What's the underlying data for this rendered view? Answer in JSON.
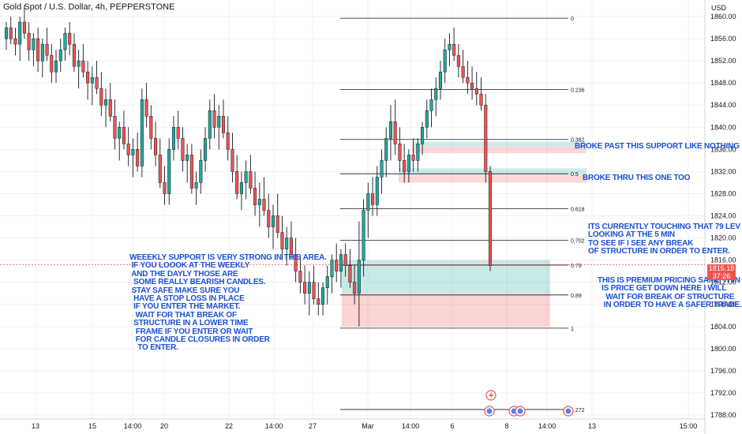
{
  "title": "Gold Spot / U.S. Dollar, 4h, PEPPERSTONE",
  "currency": "USD",
  "price_badge": {
    "price": "1815.18",
    "countdown": "37:26",
    "value": 1815.18
  },
  "chart_data": {
    "type": "candlestick",
    "y_axis": {
      "min": 1786,
      "max": 1862,
      "ticks": [
        1788,
        1792,
        1796,
        1800,
        1804,
        1808,
        1812,
        1816,
        1820,
        1824,
        1828,
        1832,
        1836,
        1840,
        1844,
        1848,
        1852,
        1856,
        1860
      ]
    },
    "x_ticks": [
      "13",
      "15",
      "14:00",
      "20",
      "22",
      "14:00",
      "27",
      "Mar",
      "14:00",
      "6",
      "8",
      "14:00",
      "13",
      "15:00"
    ],
    "fib_levels": [
      {
        "label": "0",
        "price": 1859.7
      },
      {
        "label": "0.236",
        "price": 1846.8
      },
      {
        "label": "0.382",
        "price": 1837.8
      },
      {
        "label": "0.5",
        "price": 1831.6
      },
      {
        "label": "0.618",
        "price": 1825.3
      },
      {
        "label": "0.702",
        "price": 1819.6
      },
      {
        "label": "0.79",
        "price": 1815.1
      },
      {
        "label": "0.89",
        "price": 1809.7
      },
      {
        "label": "1",
        "price": 1803.7
      },
      {
        "label": "1.272",
        "price": 1789.0
      }
    ],
    "zones": [
      {
        "type": "resistance",
        "from": 1835.3,
        "to": 1836.6
      },
      {
        "type": "support",
        "from": 1836.6,
        "to": 1837.4
      },
      {
        "type": "resistance",
        "from": 1830.0,
        "to": 1831.4
      },
      {
        "type": "support",
        "from": 1831.4,
        "to": 1832.6
      },
      {
        "type": "target",
        "from": 1814.2,
        "to": 1816.0
      },
      {
        "type": "target",
        "from": 1810.0,
        "to": 1814.2
      },
      {
        "type": "stop",
        "from": 1804.0,
        "to": 1810.0
      }
    ],
    "candles": [
      [
        1856,
        1859,
        1854,
        1858
      ],
      [
        1858,
        1860,
        1855,
        1856
      ],
      [
        1856,
        1858,
        1853,
        1855
      ],
      [
        1855,
        1860,
        1852,
        1859
      ],
      [
        1859,
        1862,
        1856,
        1857
      ],
      [
        1857,
        1859,
        1852,
        1854
      ],
      [
        1854,
        1857,
        1851,
        1856
      ],
      [
        1856,
        1858,
        1850,
        1852
      ],
      [
        1852,
        1856,
        1849,
        1855
      ],
      [
        1855,
        1858,
        1852,
        1853
      ],
      [
        1853,
        1855,
        1848,
        1850
      ],
      [
        1850,
        1854,
        1848,
        1852
      ],
      [
        1852,
        1856,
        1850,
        1854
      ],
      [
        1854,
        1858,
        1852,
        1857
      ],
      [
        1857,
        1859,
        1853,
        1855
      ],
      [
        1855,
        1857,
        1850,
        1851
      ],
      [
        1851,
        1854,
        1847,
        1852
      ],
      [
        1852,
        1855,
        1849,
        1850
      ],
      [
        1850,
        1852,
        1845,
        1848
      ],
      [
        1848,
        1851,
        1844,
        1849
      ],
      [
        1849,
        1852,
        1846,
        1847
      ],
      [
        1847,
        1850,
        1842,
        1844
      ],
      [
        1844,
        1847,
        1840,
        1845
      ],
      [
        1845,
        1848,
        1841,
        1842
      ],
      [
        1842,
        1845,
        1836,
        1838
      ],
      [
        1838,
        1841,
        1834,
        1840
      ],
      [
        1840,
        1843,
        1836,
        1837
      ],
      [
        1837,
        1840,
        1833,
        1835
      ],
      [
        1835,
        1838,
        1831,
        1836
      ],
      [
        1836,
        1839,
        1832,
        1833
      ],
      [
        1833,
        1847,
        1831,
        1845
      ],
      [
        1845,
        1848,
        1840,
        1842
      ],
      [
        1842,
        1844,
        1836,
        1838
      ],
      [
        1838,
        1841,
        1833,
        1835
      ],
      [
        1835,
        1838,
        1829,
        1830
      ],
      [
        1830,
        1833,
        1826,
        1828
      ],
      [
        1828,
        1838,
        1826,
        1836
      ],
      [
        1836,
        1842,
        1834,
        1840
      ],
      [
        1840,
        1843,
        1836,
        1838
      ],
      [
        1838,
        1840,
        1832,
        1834
      ],
      [
        1834,
        1837,
        1830,
        1835
      ],
      [
        1835,
        1837,
        1828,
        1829
      ],
      [
        1829,
        1832,
        1826,
        1830
      ],
      [
        1830,
        1836,
        1828,
        1834
      ],
      [
        1834,
        1840,
        1832,
        1838
      ],
      [
        1838,
        1845,
        1836,
        1843
      ],
      [
        1843,
        1846,
        1838,
        1840
      ],
      [
        1840,
        1844,
        1836,
        1842
      ],
      [
        1842,
        1845,
        1838,
        1839
      ],
      [
        1839,
        1842,
        1834,
        1836
      ],
      [
        1836,
        1839,
        1830,
        1832
      ],
      [
        1832,
        1835,
        1827,
        1828
      ],
      [
        1828,
        1832,
        1825,
        1830
      ],
      [
        1830,
        1834,
        1827,
        1832
      ],
      [
        1832,
        1835,
        1828,
        1829
      ],
      [
        1829,
        1832,
        1824,
        1826
      ],
      [
        1826,
        1830,
        1822,
        1827
      ],
      [
        1827,
        1831,
        1824,
        1825
      ],
      [
        1825,
        1828,
        1820,
        1822
      ],
      [
        1822,
        1826,
        1818,
        1824
      ],
      [
        1824,
        1828,
        1820,
        1821
      ],
      [
        1821,
        1824,
        1816,
        1818
      ],
      [
        1818,
        1822,
        1815,
        1820
      ],
      [
        1820,
        1823,
        1816,
        1817
      ],
      [
        1817,
        1820,
        1812,
        1814
      ],
      [
        1814,
        1817,
        1810,
        1812
      ],
      [
        1812,
        1815,
        1808,
        1810
      ],
      [
        1810,
        1814,
        1806,
        1812
      ],
      [
        1812,
        1815,
        1808,
        1809
      ],
      [
        1809,
        1812,
        1806,
        1808
      ],
      [
        1808,
        1812,
        1806,
        1811
      ],
      [
        1811,
        1815,
        1808,
        1813
      ],
      [
        1813,
        1817,
        1810,
        1816
      ],
      [
        1816,
        1819,
        1812,
        1814
      ],
      [
        1814,
        1818,
        1811,
        1817
      ],
      [
        1817,
        1819,
        1813,
        1815
      ],
      [
        1815,
        1818,
        1811,
        1812
      ],
      [
        1812,
        1815,
        1808,
        1810
      ],
      [
        1810,
        1823,
        1804,
        1816
      ],
      [
        1816,
        1827,
        1813,
        1825
      ],
      [
        1825,
        1830,
        1820,
        1828
      ],
      [
        1828,
        1831,
        1824,
        1826
      ],
      [
        1826,
        1833,
        1824,
        1831
      ],
      [
        1831,
        1836,
        1828,
        1834
      ],
      [
        1834,
        1840,
        1831,
        1838
      ],
      [
        1838,
        1844,
        1834,
        1841
      ],
      [
        1841,
        1845,
        1835,
        1837
      ],
      [
        1837,
        1840,
        1832,
        1834
      ],
      [
        1834,
        1837,
        1830,
        1832
      ],
      [
        1832,
        1836,
        1830,
        1835
      ],
      [
        1835,
        1838,
        1832,
        1834
      ],
      [
        1834,
        1838,
        1832,
        1837
      ],
      [
        1837,
        1841,
        1835,
        1840
      ],
      [
        1840,
        1845,
        1838,
        1843
      ],
      [
        1843,
        1847,
        1840,
        1845
      ],
      [
        1845,
        1849,
        1842,
        1847
      ],
      [
        1847,
        1852,
        1845,
        1850
      ],
      [
        1850,
        1856,
        1848,
        1854
      ],
      [
        1854,
        1857,
        1851,
        1855
      ],
      [
        1855,
        1858,
        1852,
        1853
      ],
      [
        1853,
        1855,
        1849,
        1851
      ],
      [
        1851,
        1854,
        1848,
        1849
      ],
      [
        1849,
        1852,
        1846,
        1848
      ],
      [
        1848,
        1851,
        1845,
        1847
      ],
      [
        1847,
        1850,
        1844,
        1846
      ],
      [
        1846,
        1849,
        1843,
        1844
      ],
      [
        1844,
        1846,
        1830,
        1832
      ],
      [
        1832,
        1833,
        1814,
        1815
      ]
    ]
  },
  "notes": {
    "weekly": "WEEEKLY SUPPORT IS VERY STRONG IN THIS AREA.\n IF YOU LOOOK AT THE WEEKLY\n AND THE DAYLY THOSE ARE\n  SOME REALLY BEARISH CANDLES.\n STAY SAFE MAKE SURE YOU\n  HAVE A STOP LOSS IN PLACE\n  IF YOU ENTER THE MARKET.\n   WAIT FOR THAT BREAK OF\n  STRUCTURE IN A LOWER TIME\n   FRAME IF YOU ENTER OR WAIT\n   FOR CANDLE CLOSURES IN ORDER\n    TO ENTER.",
    "broke_past": "BROKE PAST THIS SUPPORT LIKE NOTHING",
    "broke_thru": "BROKE THRU THIS ONE TOO",
    "touching": "ITS CURRENTLY TOUCHING THAT 79 LEV\nLOOKING AT THE 5 MIN\nTO SEE IF I SEE ANY BREAK\nOF STRUCTURE IN ORDER TO ENTER.",
    "premium": "THIS IS PREMIUM PRICING SAME THIN\n  IS PRICE GET DOWN HERE I WILL\n    WAIT FOR BREAK OF STRUCTURE\n   IN ORDER TO HAVE A SAFER TRADE."
  },
  "colors": {
    "up": "#26a69a",
    "down": "#ef5350",
    "fib": "#131722",
    "note": "#1a4fd6",
    "badge": "#ef5350"
  }
}
